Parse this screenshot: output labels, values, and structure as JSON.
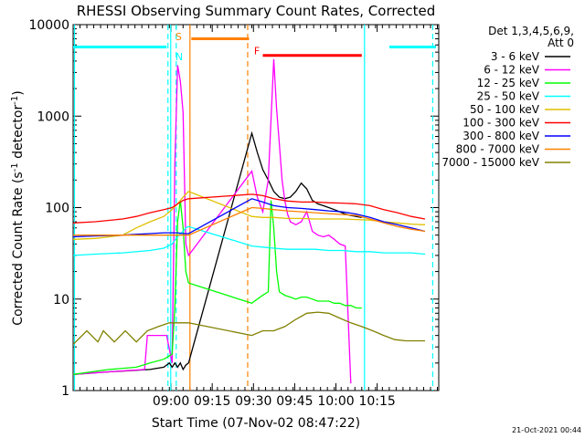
{
  "chart_data": {
    "type": "line",
    "title": "RHESSI Observing Summary Count Rates, Corrected",
    "xlabel": "Start Time (07-Nov-02 08:47:22)",
    "ylabel_main": "Corrected Count Rate (s",
    "ylabel_sup1": "-1",
    "ylabel_mid": " detector",
    "ylabel_sup2": "-1",
    "ylabel_end": ")",
    "yscale": "log",
    "ylim": [
      1,
      10000
    ],
    "xlim_minutes": [
      -23,
      110
    ],
    "x_unit": "minutes after 08:47:22 shown as clock ticks",
    "xticks": [
      {
        "t": 12.6,
        "label": "09:00"
      },
      {
        "t": 27.6,
        "label": "09:15"
      },
      {
        "t": 42.6,
        "label": "09:30"
      },
      {
        "t": 57.6,
        "label": "09:45"
      },
      {
        "t": 72.6,
        "label": "10:00"
      },
      {
        "t": 87.6,
        "label": "10:15"
      }
    ],
    "yticks": [
      {
        "v": 1,
        "label": "1"
      },
      {
        "v": 10,
        "label": "10"
      },
      {
        "v": 100,
        "label": "100"
      },
      {
        "v": 1000,
        "label": "1000"
      },
      {
        "v": 10000,
        "label": "10000"
      }
    ],
    "legend_header": [
      "Det 1,3,4,5,6,9,",
      "Att 0"
    ],
    "legend_position": "top-right outside",
    "series": [
      {
        "name": "3 - 6 keV",
        "color": "#000000",
        "x": [
          -23,
          -10,
          5,
          10,
          12,
          13,
          14,
          15,
          16,
          17,
          18,
          19,
          42,
          44,
          46,
          48,
          50,
          52,
          54,
          56,
          58,
          60,
          62,
          64,
          66,
          68,
          70,
          72,
          74,
          76,
          78,
          80,
          82
        ],
        "y": [
          1.5,
          1.6,
          1.7,
          1.8,
          2.0,
          1.8,
          2.0,
          1.8,
          2.0,
          1.7,
          1.9,
          2.0,
          650,
          400,
          260,
          200,
          150,
          130,
          125,
          130,
          150,
          185,
          160,
          120,
          110,
          105,
          100,
          95,
          90,
          85,
          82,
          80,
          78
        ]
      },
      {
        "name": "6 - 12 keV",
        "color": "#ff00ff",
        "x": [
          -23,
          -10,
          3,
          4,
          8,
          11,
          13,
          14,
          15,
          16,
          17,
          18,
          19,
          42,
          44,
          46,
          48,
          50,
          51,
          52,
          53,
          54,
          55,
          56,
          58,
          60,
          62,
          64,
          66,
          68,
          70,
          72,
          74,
          76,
          78
        ],
        "y": [
          1.5,
          1.6,
          1.7,
          4.0,
          4.0,
          4.0,
          2.0,
          300,
          3600,
          2400,
          1100,
          40,
          30,
          250,
          130,
          90,
          200,
          4200,
          1200,
          500,
          200,
          120,
          85,
          70,
          65,
          70,
          90,
          55,
          50,
          48,
          50,
          45,
          40,
          38,
          1.2
        ]
      },
      {
        "name": "12 - 25 keV",
        "color": "#00ff00",
        "x": [
          -23,
          -10,
          0,
          5,
          10,
          13,
          14,
          15,
          16,
          17,
          18,
          19,
          42,
          44,
          46,
          48,
          49,
          50,
          51,
          52,
          54,
          56,
          58,
          60,
          62,
          64,
          66,
          68,
          70,
          72,
          74,
          76,
          78,
          80,
          82
        ],
        "y": [
          1.5,
          1.7,
          1.8,
          2.0,
          2.2,
          2.5,
          8.0,
          70,
          120,
          60,
          20,
          15,
          9,
          10,
          11,
          12,
          120,
          60,
          20,
          12,
          11,
          10.5,
          10,
          10.5,
          10.5,
          10,
          9.5,
          9.5,
          9.5,
          9,
          9,
          8.5,
          8.5,
          8,
          8
        ]
      },
      {
        "name": "25 - 50 keV",
        "color": "#00ffff",
        "x": [
          -23,
          -15,
          -5,
          5,
          10,
          13,
          15,
          16,
          17,
          18,
          19,
          42,
          46,
          50,
          55,
          60,
          65,
          70,
          75,
          80,
          85,
          90,
          95,
          100,
          105
        ],
        "y": [
          30,
          31,
          32,
          34,
          36,
          40,
          48,
          52,
          55,
          60,
          62,
          38,
          37,
          36,
          35,
          35,
          35,
          34,
          34,
          33,
          33,
          32,
          32,
          32,
          31
        ]
      },
      {
        "name": "50 - 100 keV",
        "color": "#e0c000",
        "x": [
          -23,
          -15,
          -5,
          0,
          5,
          10,
          13,
          15,
          17,
          19,
          42,
          46,
          50,
          55,
          60,
          65,
          70,
          75,
          80,
          85,
          90,
          95,
          100,
          105
        ],
        "y": [
          45,
          46,
          50,
          60,
          70,
          80,
          95,
          110,
          130,
          150,
          80,
          78,
          78,
          76,
          76,
          75,
          75,
          75,
          74,
          73,
          70,
          68,
          66,
          65
        ]
      },
      {
        "name": "100 - 300 keV",
        "color": "#ff0000",
        "x": [
          -23,
          -15,
          -5,
          0,
          5,
          10,
          13,
          15,
          17,
          19,
          42,
          46,
          50,
          55,
          60,
          65,
          70,
          75,
          80,
          85,
          90,
          95,
          100,
          105
        ],
        "y": [
          68,
          70,
          75,
          80,
          88,
          95,
          100,
          110,
          120,
          125,
          140,
          135,
          125,
          118,
          115,
          115,
          113,
          112,
          110,
          105,
          95,
          88,
          80,
          75
        ]
      },
      {
        "name": "300 - 800 keV",
        "color": "#0000ff",
        "x": [
          -23,
          -15,
          -5,
          0,
          5,
          10,
          13,
          15,
          17,
          19,
          42,
          46,
          50,
          55,
          60,
          65,
          70,
          75,
          80,
          85,
          90,
          95,
          100,
          105
        ],
        "y": [
          48,
          49,
          50,
          51,
          52,
          53,
          53,
          53,
          52,
          52,
          125,
          115,
          105,
          100,
          98,
          95,
          92,
          90,
          85,
          78,
          70,
          65,
          60,
          55
        ]
      },
      {
        "name": "800 - 7000 keV",
        "color": "#ff8000",
        "x": [
          -23,
          -15,
          -5,
          0,
          5,
          10,
          13,
          15,
          17,
          19,
          42,
          46,
          50,
          55,
          60,
          65,
          70,
          75,
          80,
          85,
          90,
          95,
          100,
          105
        ],
        "y": [
          50,
          50,
          50,
          50,
          50,
          50,
          50,
          50,
          50,
          50,
          100,
          98,
          95,
          92,
          90,
          88,
          86,
          84,
          82,
          75,
          68,
          62,
          58,
          55
        ]
      },
      {
        "name": "7000 - 15000 keV",
        "color": "#808000",
        "x": [
          -23,
          -18,
          -14,
          -12,
          -8,
          -4,
          0,
          4,
          8,
          12,
          14,
          16,
          18,
          19,
          42,
          46,
          50,
          54,
          58,
          62,
          66,
          70,
          74,
          78,
          82,
          86,
          90,
          94,
          98,
          102,
          105
        ],
        "y": [
          3.2,
          4.5,
          3.4,
          4.5,
          3.4,
          4.5,
          3.4,
          4.5,
          5.0,
          5.5,
          5.5,
          5.5,
          5.5,
          5.5,
          4.0,
          4.5,
          4.5,
          5.0,
          6.0,
          7.0,
          7.2,
          7.0,
          6.2,
          5.5,
          5.0,
          4.5,
          4.0,
          3.6,
          3.5,
          3.5,
          3.5
        ]
      }
    ],
    "bars": [
      {
        "color": "#00ffff",
        "x1": -23,
        "x2": 11,
        "y": 5700
      },
      {
        "color": "#ff8000",
        "x1": 20,
        "x2": 41,
        "y": 7000
      },
      {
        "color": "#ff0000",
        "x1": 46,
        "x2": 82,
        "y": 4600
      },
      {
        "color": "#00ffff",
        "x1": 92,
        "x2": 109,
        "y": 5700
      }
    ],
    "vlines": [
      {
        "color": "#00ffff",
        "x": -22.5,
        "style": "solid"
      },
      {
        "color": "#00ffff",
        "x": 11.5,
        "style": "dashed"
      },
      {
        "color": "#00ffff",
        "x": 12.5,
        "style": "solid"
      },
      {
        "color": "#00ffff",
        "x": 14.5,
        "style": "dashed"
      },
      {
        "color": "#ff8000",
        "x": 19.5,
        "style": "solid"
      },
      {
        "color": "#ff8000",
        "x": 40.5,
        "style": "dashed"
      },
      {
        "color": "#00ffff",
        "x": 83,
        "style": "solid"
      },
      {
        "color": "#00ffff",
        "x": 107.8,
        "style": "dashed"
      }
    ],
    "annotations": [
      {
        "text": "S",
        "color": "#ff8000",
        "x": 14.2,
        "y": 7400
      },
      {
        "text": "N",
        "color": "#00ffff",
        "x": 14.2,
        "y": 4500
      },
      {
        "text": "F",
        "color": "#ff0000",
        "x": 42.8,
        "y": 5200
      }
    ]
  },
  "footer_stamp": "21-Oct-2021 00:44"
}
